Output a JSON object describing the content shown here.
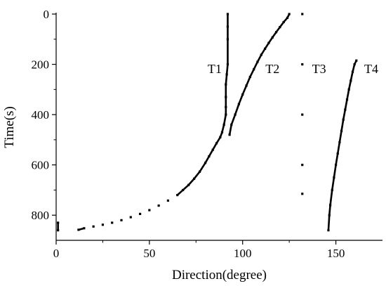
{
  "chart_data": {
    "type": "scatter",
    "xlabel": "Direction(degree)",
    "ylabel": "Time(s)",
    "xlim": [
      0,
      175
    ],
    "ylim": [
      0,
      900
    ],
    "y_inverted": true,
    "x_ticks": [
      0,
      50,
      100,
      150
    ],
    "y_ticks": [
      0,
      200,
      400,
      600,
      800
    ],
    "grid": false,
    "legend": "none",
    "marker_color": "#000000",
    "series": [
      {
        "x": [
          1,
          1,
          12,
          15,
          20,
          25,
          30,
          35,
          40,
          45,
          50,
          55,
          60,
          65,
          68,
          71,
          74,
          77,
          80,
          82,
          84,
          86,
          88,
          89,
          90,
          91,
          91,
          91,
          91,
          91.5,
          92,
          92,
          92,
          92
        ],
        "y": [
          830,
          860,
          858,
          852,
          845,
          838,
          830,
          820,
          808,
          795,
          780,
          762,
          742,
          720,
          700,
          680,
          655,
          627,
          592,
          566,
          540,
          514,
          490,
          470,
          440,
          400,
          370,
          330,
          280,
          240,
          200,
          100,
          50,
          0
        ]
      },
      {
        "x": [
          93,
          94,
          96,
          98,
          100,
          102,
          104,
          106,
          108,
          110,
          112,
          114,
          116,
          118,
          120,
          122,
          124,
          125
        ],
        "y": [
          480,
          440,
          400,
          358,
          320,
          285,
          250,
          220,
          190,
          162,
          138,
          115,
          93,
          72,
          52,
          32,
          15,
          0
        ]
      },
      {
        "x": [
          132,
          132,
          132,
          132,
          132
        ],
        "y": [
          0,
          200,
          400,
          600,
          715
        ]
      },
      {
        "x": [
          146,
          146.5,
          147,
          148,
          149,
          150,
          151,
          152,
          153,
          154,
          155,
          156,
          157,
          158,
          159,
          160,
          161
        ],
        "y": [
          860,
          800,
          760,
          700,
          650,
          600,
          555,
          510,
          465,
          420,
          380,
          340,
          300,
          265,
          230,
          200,
          185
        ]
      }
    ],
    "annotations": [
      {
        "text": "T1",
        "x": 85,
        "y": 218
      },
      {
        "text": "T2",
        "x": 116,
        "y": 218
      },
      {
        "text": "T3",
        "x": 141,
        "y": 218
      },
      {
        "text": "T4",
        "x": 169,
        "y": 218
      }
    ]
  }
}
